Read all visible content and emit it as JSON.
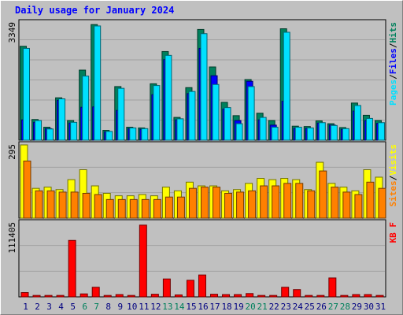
{
  "title": "Daily usage for January 2024",
  "colors": {
    "hits": "#00805c",
    "files": "#0000ff",
    "pages": "#00e0ff",
    "visits": "#ffff00",
    "sites": "#ff8000",
    "kbytes": "#ff0000",
    "weekend_label": "#00805c",
    "weekday_label": "#000080",
    "panel_bg": "#c0c0c0",
    "grid": "#a0a0a0"
  },
  "chart_data": [
    {
      "type": "bar",
      "name": "hits-files-pages",
      "ymax_label": "3349",
      "ymax": 3349,
      "legend": [
        "Pages",
        "Files",
        "Hits"
      ],
      "categories": [
        "1",
        "2",
        "3",
        "4",
        "5",
        "6",
        "7",
        "8",
        "9",
        "10",
        "11",
        "12",
        "13",
        "14",
        "15",
        "16",
        "17",
        "18",
        "19",
        "20",
        "21",
        "22",
        "23",
        "24",
        "25",
        "26",
        "27",
        "28",
        "29",
        "30",
        "31"
      ],
      "series": [
        {
          "name": "Hits",
          "values": [
            2680,
            590,
            370,
            1210,
            560,
            2000,
            3300,
            280,
            1530,
            370,
            350,
            1610,
            2530,
            650,
            1500,
            3160,
            2090,
            1080,
            700,
            1730,
            770,
            560,
            3180,
            400,
            390,
            550,
            470,
            360,
            1060,
            710,
            560
          ]
        },
        {
          "name": "Files",
          "values": [
            580,
            510,
            330,
            1140,
            490,
            940,
            950,
            240,
            850,
            330,
            310,
            1300,
            2300,
            580,
            1330,
            2620,
            1840,
            890,
            560,
            1680,
            580,
            430,
            1110,
            340,
            340,
            490,
            430,
            310,
            830,
            560,
            480
          ]
        },
        {
          "name": "Pages",
          "values": [
            2620,
            560,
            320,
            1180,
            510,
            1830,
            3260,
            250,
            1480,
            350,
            330,
            1560,
            2420,
            610,
            1390,
            3040,
            1590,
            930,
            470,
            1530,
            650,
            370,
            3080,
            370,
            350,
            500,
            420,
            330,
            990,
            620,
            500
          ]
        }
      ]
    },
    {
      "type": "bar",
      "name": "visits-sites",
      "ymax_label": "295",
      "ymax": 295,
      "legend": [
        "Sites",
        "Visits"
      ],
      "categories": [
        "1",
        "2",
        "3",
        "4",
        "5",
        "6",
        "7",
        "8",
        "9",
        "10",
        "11",
        "12",
        "13",
        "14",
        "15",
        "16",
        "17",
        "18",
        "19",
        "20",
        "21",
        "22",
        "23",
        "24",
        "25",
        "26",
        "27",
        "28",
        "29",
        "30",
        "31"
      ],
      "series": [
        {
          "name": "Visits",
          "values": [
            295,
            120,
            125,
            115,
            155,
            195,
            130,
            100,
            90,
            90,
            95,
            90,
            125,
            110,
            145,
            130,
            130,
            110,
            115,
            140,
            160,
            155,
            160,
            155,
            115,
            225,
            140,
            125,
            110,
            195,
            165
          ]
        },
        {
          "name": "Sites",
          "values": [
            230,
            110,
            110,
            105,
            105,
            100,
            95,
            75,
            75,
            75,
            75,
            75,
            85,
            85,
            120,
            125,
            125,
            100,
            105,
            110,
            130,
            130,
            140,
            140,
            110,
            190,
            125,
            105,
            95,
            145,
            120
          ]
        }
      ]
    },
    {
      "type": "bar",
      "name": "kbytes",
      "ymax_label": "111405",
      "ymax": 111405,
      "legend": [
        "KB F"
      ],
      "categories": [
        "1",
        "2",
        "3",
        "4",
        "5",
        "6",
        "7",
        "8",
        "9",
        "10",
        "11",
        "12",
        "13",
        "14",
        "15",
        "16",
        "17",
        "18",
        "19",
        "20",
        "21",
        "22",
        "23",
        "24",
        "25",
        "26",
        "27",
        "28",
        "29",
        "30",
        "31"
      ],
      "series": [
        {
          "name": "KB F",
          "values": [
            6500,
            2200,
            2200,
            2200,
            85000,
            4500,
            14500,
            2200,
            3500,
            2200,
            108000,
            4000,
            27000,
            3000,
            25000,
            33000,
            4000,
            3500,
            3500,
            5000,
            2200,
            2200,
            14500,
            11000,
            2200,
            2200,
            28500,
            2200,
            3500,
            3500,
            2200
          ]
        }
      ]
    }
  ],
  "x_labels": [
    {
      "label": "1",
      "weekend": false
    },
    {
      "label": "2",
      "weekend": false
    },
    {
      "label": "3",
      "weekend": false
    },
    {
      "label": "4",
      "weekend": false
    },
    {
      "label": "5",
      "weekend": false
    },
    {
      "label": "6",
      "weekend": true
    },
    {
      "label": "7",
      "weekend": true
    },
    {
      "label": "8",
      "weekend": false
    },
    {
      "label": "9",
      "weekend": false
    },
    {
      "label": "10",
      "weekend": false
    },
    {
      "label": "11",
      "weekend": false
    },
    {
      "label": "12",
      "weekend": false
    },
    {
      "label": "13",
      "weekend": true
    },
    {
      "label": "14",
      "weekend": true
    },
    {
      "label": "15",
      "weekend": false
    },
    {
      "label": "16",
      "weekend": false
    },
    {
      "label": "17",
      "weekend": false
    },
    {
      "label": "18",
      "weekend": false
    },
    {
      "label": "19",
      "weekend": false
    },
    {
      "label": "20",
      "weekend": true
    },
    {
      "label": "21",
      "weekend": true
    },
    {
      "label": "22",
      "weekend": false
    },
    {
      "label": "23",
      "weekend": false
    },
    {
      "label": "24",
      "weekend": false
    },
    {
      "label": "25",
      "weekend": false
    },
    {
      "label": "26",
      "weekend": false
    },
    {
      "label": "27",
      "weekend": true
    },
    {
      "label": "28",
      "weekend": true
    },
    {
      "label": "29",
      "weekend": false
    },
    {
      "label": "30",
      "weekend": false
    },
    {
      "label": "31",
      "weekend": false
    }
  ]
}
